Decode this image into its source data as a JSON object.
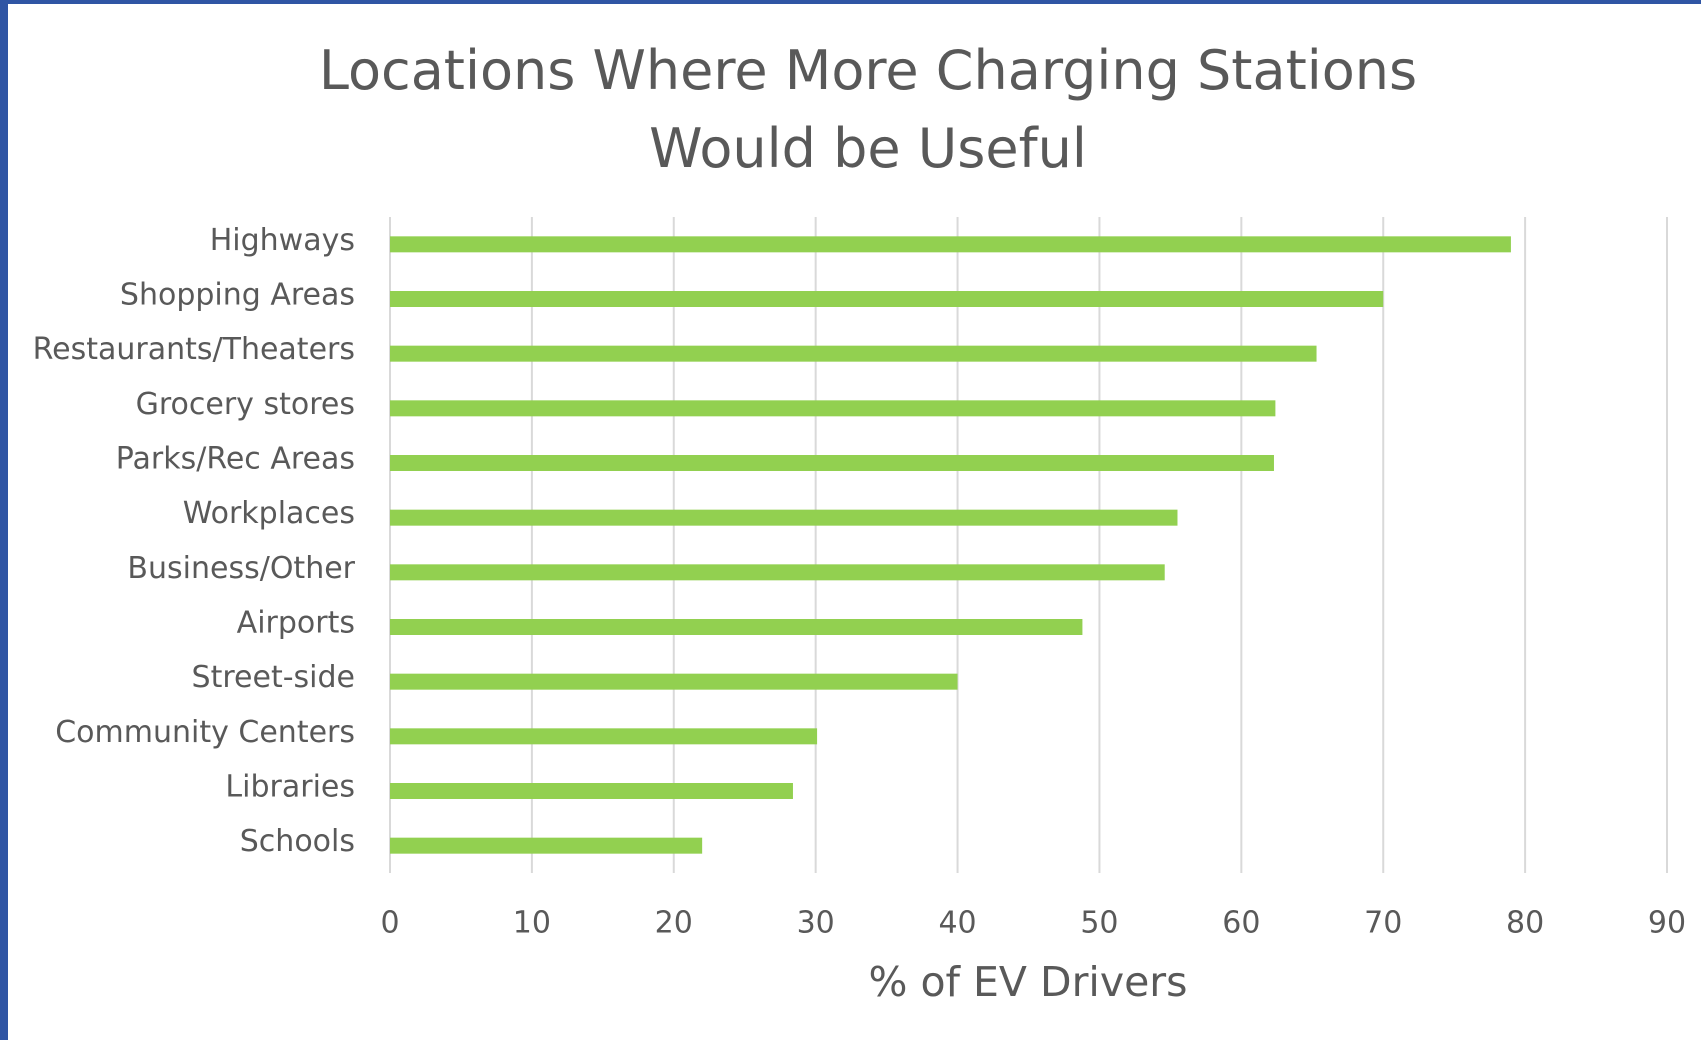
{
  "chart_data": {
    "type": "bar",
    "orientation": "horizontal",
    "title": "Locations Where More Charging Stations Would be Useful",
    "x_label": "% of EV Drivers",
    "categories": [
      "Highways",
      "Shopping Areas",
      "Restaurants/Theaters",
      "Grocery stores",
      "Parks/Rec Areas",
      "Workplaces",
      "Business/Other",
      "Airports",
      "Street-side",
      "Community Centers",
      "Libraries",
      "Schools"
    ],
    "values": [
      79,
      70,
      65.3,
      62.4,
      62.3,
      55.5,
      54.6,
      48.8,
      40,
      30.1,
      28.4,
      22
    ],
    "color": "#92d050",
    "xlim": [
      0,
      90
    ],
    "xticks": [
      0,
      10,
      20,
      30,
      40,
      50,
      60,
      70,
      80,
      90
    ],
    "grid": true
  }
}
